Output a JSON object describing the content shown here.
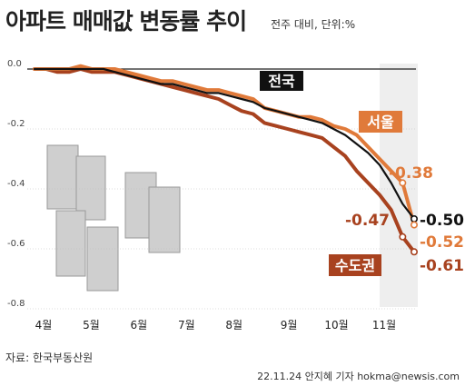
{
  "title": "아파트 매매값 변동률 추이",
  "unit_note": "전주 대비, 단위:%",
  "source": "자료: 한국부동산원",
  "credit": "22.11.24 안지혜 기자 hokma@newsis.com",
  "colors": {
    "nationwide": "#111111",
    "seoul": "#e07a3a",
    "capital": "#a8421f"
  },
  "chart_data": {
    "type": "line",
    "title": "아파트 매매값 변동률 추이",
    "xlabel": "",
    "ylabel": "",
    "ylim": [
      -0.8,
      0.0
    ],
    "yticks": [
      "0.0",
      "-0.2",
      "-0.4",
      "-0.6",
      "-0.8"
    ],
    "months": [
      "4월",
      "5월",
      "6월",
      "7월",
      "8월",
      "9월",
      "10월",
      "11월"
    ],
    "x": [
      1,
      2,
      3,
      4,
      5,
      6,
      7,
      8,
      9,
      10,
      11,
      12,
      13,
      14,
      15,
      16,
      17,
      18,
      19,
      20,
      21,
      22,
      23,
      24,
      25,
      26,
      27,
      28,
      29,
      30,
      31,
      32,
      33,
      34
    ],
    "series": [
      {
        "name": "전국",
        "color": "#111111",
        "values": [
          0.0,
          0.0,
          0.0,
          0.0,
          0.0,
          0.0,
          0.0,
          -0.01,
          -0.02,
          -0.03,
          -0.04,
          -0.05,
          -0.05,
          -0.06,
          -0.07,
          -0.08,
          -0.08,
          -0.09,
          -0.1,
          -0.11,
          -0.13,
          -0.14,
          -0.15,
          -0.16,
          -0.17,
          -0.18,
          -0.2,
          -0.22,
          -0.25,
          -0.28,
          -0.32,
          -0.38,
          -0.45,
          -0.5
        ],
        "end_label": "-0.50",
        "end_label_color": "#111111"
      },
      {
        "name": "서울",
        "color": "#e07a3a",
        "values": [
          0.0,
          0.0,
          0.0,
          0.0,
          0.01,
          0.0,
          0.0,
          0.0,
          -0.01,
          -0.02,
          -0.03,
          -0.04,
          -0.04,
          -0.05,
          -0.06,
          -0.07,
          -0.07,
          -0.08,
          -0.09,
          -0.1,
          -0.13,
          -0.14,
          -0.15,
          -0.16,
          -0.16,
          -0.17,
          -0.19,
          -0.2,
          -0.22,
          -0.26,
          -0.3,
          -0.34,
          -0.38,
          -0.52
        ],
        "end_label": "-0.52",
        "end_label_color": "#e07a3a",
        "point_label": "-0.38",
        "point_label_color": "#e07a3a"
      },
      {
        "name": "수도권",
        "color": "#a8421f",
        "values": [
          0.0,
          0.0,
          -0.01,
          -0.01,
          0.0,
          -0.01,
          -0.01,
          -0.01,
          -0.02,
          -0.03,
          -0.04,
          -0.05,
          -0.06,
          -0.07,
          -0.08,
          -0.09,
          -0.1,
          -0.12,
          -0.14,
          -0.15,
          -0.18,
          -0.19,
          -0.2,
          -0.21,
          -0.22,
          -0.23,
          -0.26,
          -0.29,
          -0.34,
          -0.38,
          -0.42,
          -0.47,
          -0.56,
          -0.61
        ],
        "end_label": "-0.61",
        "end_label_color": "#a8421f",
        "point_label": "-0.47",
        "point_label_color": "#a8421f"
      }
    ]
  }
}
